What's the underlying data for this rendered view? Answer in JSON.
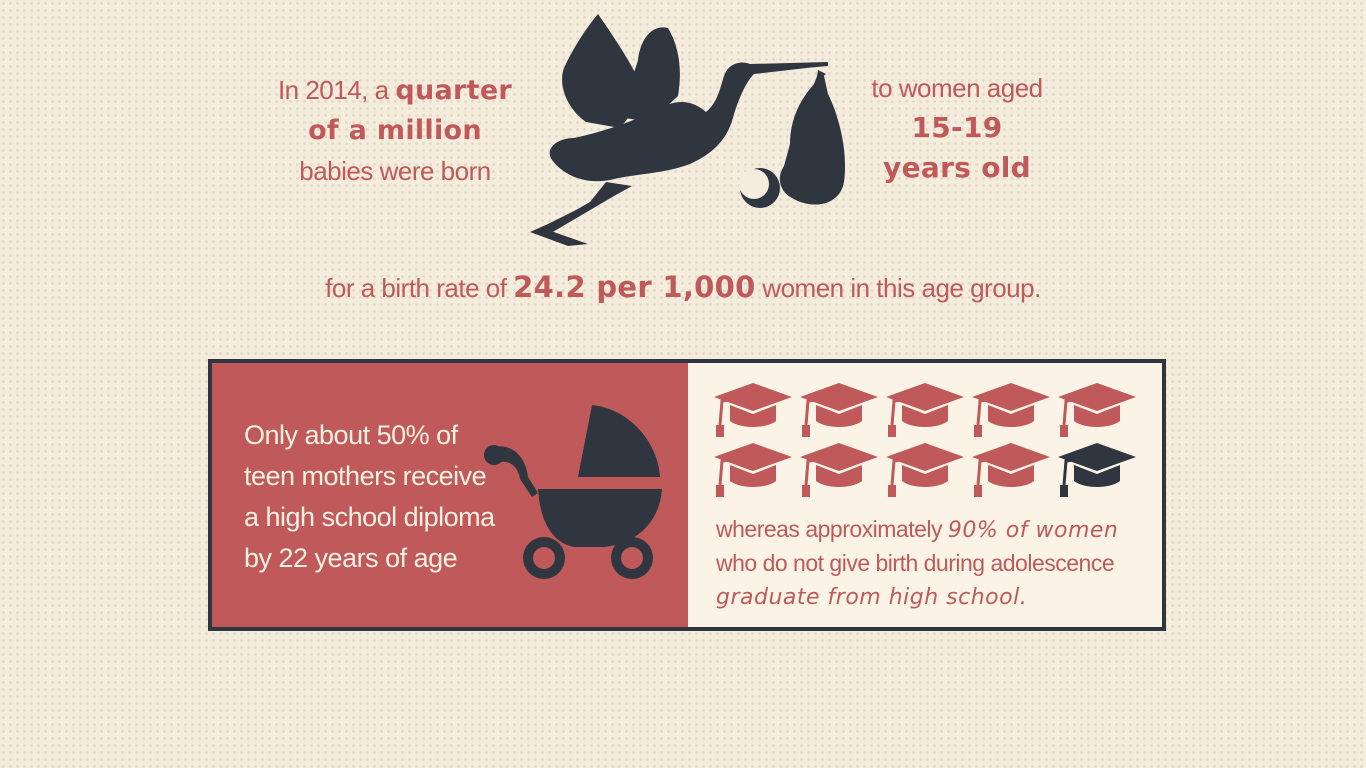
{
  "stork_left": {
    "prefix": "In 2014, a ",
    "highlight_1": "quarter",
    "highlight_2": "of a million",
    "suffix": "babies were born"
  },
  "stork_right": {
    "prefix": "to women aged",
    "highlight_1": "15-19",
    "highlight_2": "years old"
  },
  "rate_line": {
    "prefix": "for a birth rate of ",
    "highlight": "24.2 per 1,000",
    "suffix": " women in this age group."
  },
  "diploma": {
    "line_1": "Only about 50% of",
    "line_2": "teen mothers receive",
    "line_3": "a high school diploma",
    "line_4": "by 22 years of age"
  },
  "graduates": {
    "total_caps": 10,
    "highlighted_caps": 9,
    "line_1_prefix": "whereas approximately ",
    "line_1_highlight": "90% of women",
    "line_2": "who do not give birth during adolescence",
    "line_3_highlight": "graduate from high school",
    "line_3_suffix": "."
  },
  "colors": {
    "accent_red": "#c0595a",
    "dark_navy": "#2f3640",
    "background": "#f4ecdd",
    "panel_light": "#fbf4e6"
  },
  "icons": [
    "stork-icon",
    "baby-bundle-icon",
    "stroller-icon",
    "graduation-cap-icon"
  ]
}
